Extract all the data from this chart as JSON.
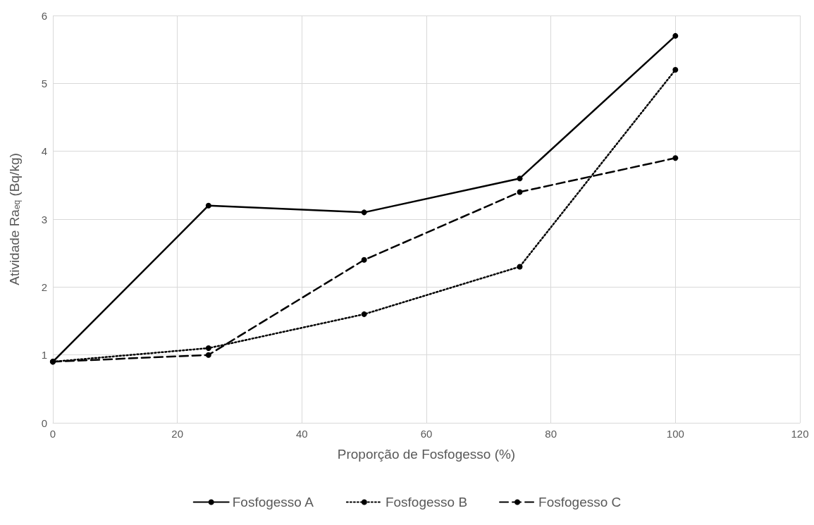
{
  "chart_data": {
    "type": "line",
    "xlabel": "Proporção de Fosfogesso (%)",
    "ylabel": "Atividade Ra$_{eq}$ (Bq/kg)",
    "x": [
      0,
      25,
      50,
      75,
      100
    ],
    "series": [
      {
        "name": "Fosfogesso A",
        "color": "#000000",
        "line_style": "solid",
        "values": [
          0.9,
          3.2,
          3.1,
          3.6,
          5.7
        ]
      },
      {
        "name": "Fosfogesso B",
        "color": "#000000",
        "line_style": "dotted",
        "values": [
          0.9,
          1.1,
          1.6,
          2.3,
          5.2
        ]
      },
      {
        "name": "Fosfogesso C",
        "color": "#000000",
        "line_style": "dashed",
        "values": [
          0.9,
          1.0,
          2.4,
          3.4,
          3.9
        ]
      }
    ],
    "xlim": [
      0,
      120
    ],
    "xticks": [
      0,
      20,
      40,
      60,
      80,
      100,
      120
    ],
    "ylim": [
      0,
      6
    ],
    "yticks": [
      0,
      1,
      2,
      3,
      4,
      5,
      6
    ],
    "grid": true,
    "legend": "bottom",
    "marker": "circle"
  }
}
